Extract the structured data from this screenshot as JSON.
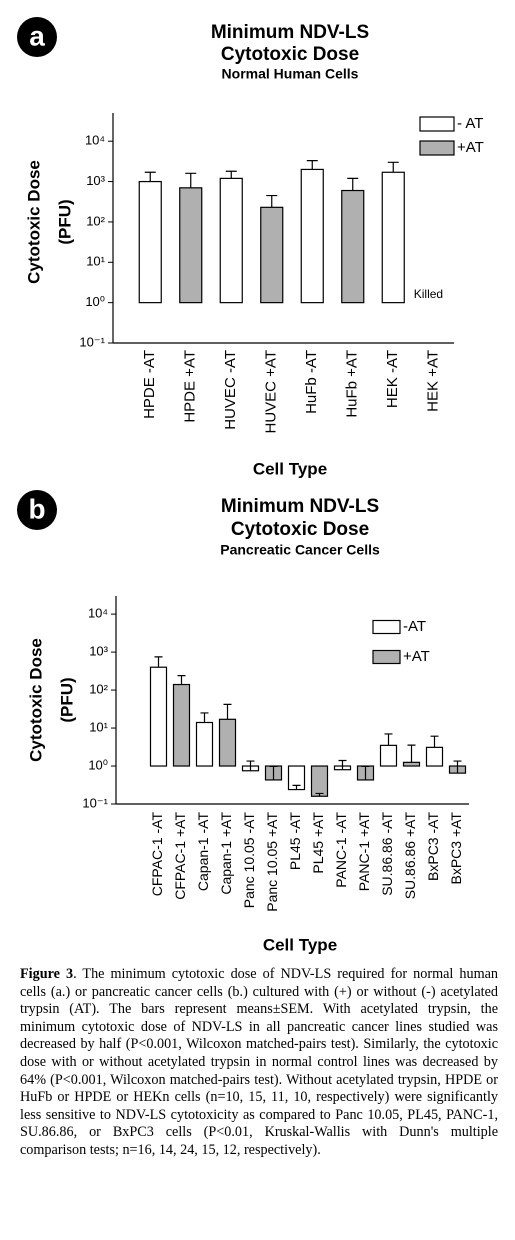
{
  "chart_data": [
    {
      "type": "bar",
      "panel": "a",
      "title_lines": [
        "Minimum NDV-LS",
        "Cytotoxic Dose"
      ],
      "subtitle": "Normal Human Cells",
      "ylabel_lines": [
        "Cytotoxic Dose",
        "(PFU)"
      ],
      "xlabel": "Cell Type",
      "categories": [
        "HPDE -AT",
        "HPDE +AT",
        "HUVEC -AT",
        "HUVEC +AT",
        "HuFb -AT",
        "HuFb +AT",
        "HEK -AT",
        "HEK +AT"
      ],
      "values": [
        1000,
        700,
        1200,
        230,
        2000,
        600,
        1700,
        null
      ],
      "errors": [
        700,
        900,
        600,
        220,
        1300,
        600,
        1300,
        null
      ],
      "colors": [
        "#ffffff",
        "#b0b0b0",
        "#ffffff",
        "#b0b0b0",
        "#ffffff",
        "#b0b0b0",
        "#ffffff",
        "#b0b0b0"
      ],
      "legend": [
        {
          "name": "- AT",
          "color": "#ffffff"
        },
        {
          "name": "+AT",
          "color": "#b0b0b0"
        }
      ],
      "annotations": [
        {
          "text": "Killed",
          "category": "HEK +AT"
        }
      ],
      "log_scale": true,
      "bar_base": 1,
      "ylim": [
        0.1,
        50000
      ],
      "yticks": [
        {
          "value": 0.1,
          "label": "10⁻¹"
        },
        {
          "value": 1,
          "label": "10⁰"
        },
        {
          "value": 10,
          "label": "10¹"
        },
        {
          "value": 100,
          "label": "10²"
        },
        {
          "value": 1000,
          "label": "10³"
        },
        {
          "value": 10000,
          "label": "10⁴"
        }
      ]
    },
    {
      "type": "bar",
      "panel": "b",
      "title_lines": [
        "Minimum NDV-LS",
        "Cytotoxic Dose"
      ],
      "subtitle": "Pancreatic Cancer Cells",
      "ylabel_lines": [
        "Cytotoxic Dose",
        "(PFU)"
      ],
      "xlabel": "Cell Type",
      "categories": [
        "CFPAC-1 -AT",
        "CFPAC-1 +AT",
        "Capan-1 -AT",
        "Capan-1 +AT",
        "Panc 10.05 -AT",
        "Panc 10.05 +AT",
        "PL45 -AT",
        "PL45 +AT",
        "PANC-1 -AT",
        "PANC-1 +AT",
        "SU.86.86 -AT",
        "SU.86.86 +AT",
        "BxPC3 -AT",
        "BxPC3 +AT"
      ],
      "values": [
        400,
        140,
        14,
        17,
        0.75,
        0.43,
        0.24,
        0.16,
        0.8,
        0.43,
        3.5,
        1.25,
        3.1,
        0.65
      ],
      "errors": [
        350,
        100,
        11,
        25,
        0.6,
        0.55,
        0.07,
        0.03,
        0.6,
        0.55,
        3.5,
        2.3,
        3,
        0.7
      ],
      "colors": [
        "#ffffff",
        "#b0b0b0",
        "#ffffff",
        "#b0b0b0",
        "#ffffff",
        "#b0b0b0",
        "#ffffff",
        "#b0b0b0",
        "#ffffff",
        "#b0b0b0",
        "#ffffff",
        "#b0b0b0",
        "#ffffff",
        "#b0b0b0"
      ],
      "legend": [
        {
          "name": "-AT",
          "color": "#ffffff"
        },
        {
          "name": "+AT",
          "color": "#b0b0b0"
        }
      ],
      "annotations": [],
      "log_scale": true,
      "bar_base": 1,
      "ylim": [
        0.1,
        30000
      ],
      "yticks": [
        {
          "value": 0.1,
          "label": "10⁻¹"
        },
        {
          "value": 1,
          "label": "10⁰"
        },
        {
          "value": 10,
          "label": "10¹"
        },
        {
          "value": 100,
          "label": "10²"
        },
        {
          "value": 1000,
          "label": "10³"
        },
        {
          "value": 10000,
          "label": "10⁴"
        }
      ]
    }
  ],
  "caption": {
    "label": "Figure 3",
    "text": ". The minimum cytotoxic dose of NDV-LS required for normal human cells (a.) or pancreatic cancer cells (b.) cultured with (+) or without (-) acetylated trypsin (AT). The bars represent means±SEM. With acetylated trypsin, the minimum cytotoxic dose of NDV-LS in all pancreatic cancer lines studied was decreased by half (P<0.001, Wilcoxon matched-pairs test). Similarly, the cytotoxic dose with or without acetylated trypsin in normal control lines was decreased by 64% (P<0.001, Wilcoxon matched-pairs test). Without acetylated trypsin, HPDE or HuFb or HPDE or HEKn cells (n=10, 15, 11, 10, respectively) were significantly less sensitive to NDV-LS cytotoxicity as compared to Panc 10.05, PL45, PANC-1, SU.86.86, or BxPC3 cells (P<0.01, Kruskal-Wallis with Dunn's multiple comparison tests; n=16, 14, 24, 15, 12, respectively)."
  }
}
